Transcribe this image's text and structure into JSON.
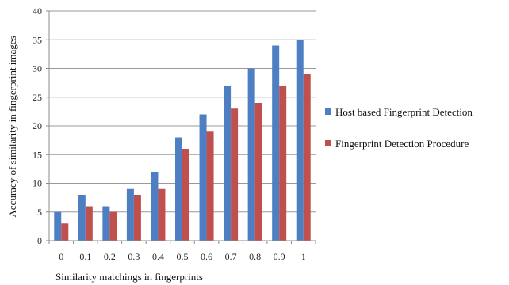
{
  "chart_data": {
    "type": "bar",
    "categories": [
      "0",
      "0.1",
      "0.2",
      "0.3",
      "0.4",
      "0.5",
      "0.6",
      "0.7",
      "0.8",
      "0.9",
      "1"
    ],
    "series": [
      {
        "name": "Host based Fingerprint Detection",
        "values": [
          5,
          8,
          6,
          9,
          12,
          18,
          22,
          27,
          30,
          34,
          35
        ],
        "color": "#4f7fc3"
      },
      {
        "name": "Fingerprint Detection Procedure",
        "values": [
          3,
          6,
          5,
          8,
          9,
          16,
          19,
          23,
          24,
          27,
          29
        ],
        "color": "#c0504d"
      }
    ],
    "xlabel": "Similarity matchings in fingerprints",
    "ylabel": "Accuracy of similarity in fingerprint images",
    "ylim": [
      0,
      40
    ],
    "yticks": [
      0,
      5,
      10,
      15,
      20,
      25,
      30,
      35,
      40
    ],
    "grid": true,
    "legend_position": "right"
  }
}
